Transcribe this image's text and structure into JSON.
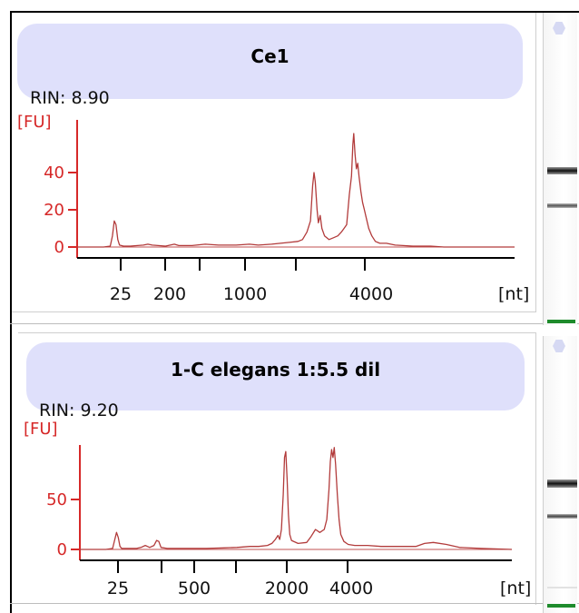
{
  "chart_data": [
    {
      "type": "line",
      "title": "Ce1",
      "rin": "RIN: 8.90",
      "ylabel": "[FU]",
      "xlabel": "[nt]",
      "y_ticks": [
        0,
        20,
        40
      ],
      "x_tick_labels": [
        "25",
        "200",
        "1000",
        "4000"
      ],
      "ylim": [
        -8,
        70
      ],
      "x_unit": "migration time (s, unlabeled axis)",
      "series": [
        {
          "color": "#b23b3b",
          "points": [
            [
              16,
              0
            ],
            [
              22,
              0
            ],
            [
              23.5,
              0.5
            ],
            [
              24,
              6
            ],
            [
              24.4,
              14
            ],
            [
              24.8,
              12
            ],
            [
              25.2,
              4
            ],
            [
              25.6,
              1
            ],
            [
              26.5,
              0.5
            ],
            [
              28,
              0.5
            ],
            [
              31,
              1
            ],
            [
              32,
              1.5
            ],
            [
              33,
              1
            ],
            [
              36,
              0.5
            ],
            [
              38,
              1.5
            ],
            [
              39,
              0.8
            ],
            [
              42,
              0.8
            ],
            [
              45,
              1.5
            ],
            [
              48,
              1
            ],
            [
              52,
              1
            ],
            [
              55,
              1.5
            ],
            [
              57,
              1
            ],
            [
              60,
              1.5
            ],
            [
              62,
              2
            ],
            [
              64,
              2.5
            ],
            [
              66,
              3
            ],
            [
              67,
              4
            ],
            [
              68,
              8
            ],
            [
              68.8,
              14
            ],
            [
              69.3,
              33
            ],
            [
              69.6,
              40
            ],
            [
              69.9,
              35
            ],
            [
              70.3,
              20
            ],
            [
              70.6,
              13
            ],
            [
              71,
              17
            ],
            [
              71.4,
              10
            ],
            [
              72,
              6
            ],
            [
              73,
              4
            ],
            [
              74,
              5
            ],
            [
              75,
              6
            ],
            [
              75.8,
              8
            ],
            [
              76.4,
              10
            ],
            [
              77,
              12
            ],
            [
              77.6,
              28
            ],
            [
              78.1,
              38
            ],
            [
              78.4,
              55
            ],
            [
              78.6,
              61
            ],
            [
              78.9,
              50
            ],
            [
              79.2,
              42
            ],
            [
              79.5,
              45
            ],
            [
              79.8,
              38
            ],
            [
              80.2,
              30
            ],
            [
              80.6,
              24
            ],
            [
              81,
              20
            ],
            [
              81.5,
              15
            ],
            [
              82,
              10
            ],
            [
              82.7,
              6
            ],
            [
              83.5,
              3
            ],
            [
              84.5,
              2
            ],
            [
              86,
              2
            ],
            [
              88,
              1
            ],
            [
              92,
              0.5
            ],
            [
              96,
              0.5
            ],
            [
              99,
              0
            ],
            [
              115,
              0
            ]
          ]
        }
      ]
    },
    {
      "type": "line",
      "title": "1-C elegans   1:5.5 dil",
      "rin": "RIN: 9.20",
      "ylabel": "[FU]",
      "xlabel": "[nt]",
      "y_ticks": [
        0,
        50
      ],
      "x_tick_labels": [
        "25",
        "500",
        "2000",
        "4000"
      ],
      "ylim": [
        -12,
        110
      ],
      "x_unit": "migration time (s, unlabeled axis)",
      "series": [
        {
          "color": "#b23b3b",
          "points": [
            [
              16,
              0
            ],
            [
              22,
              0
            ],
            [
              23.5,
              1
            ],
            [
              24,
              10
            ],
            [
              24.4,
              17
            ],
            [
              24.8,
              12
            ],
            [
              25.2,
              3
            ],
            [
              25.6,
              1
            ],
            [
              27,
              1
            ],
            [
              29,
              1
            ],
            [
              30,
              2
            ],
            [
              31,
              4
            ],
            [
              31.5,
              3
            ],
            [
              32,
              2
            ],
            [
              33,
              4
            ],
            [
              33.6,
              9
            ],
            [
              34.1,
              8
            ],
            [
              34.6,
              2
            ],
            [
              36,
              1
            ],
            [
              40,
              1
            ],
            [
              45,
              1
            ],
            [
              49,
              1.5
            ],
            [
              52,
              2
            ],
            [
              55,
              3
            ],
            [
              57,
              3
            ],
            [
              59,
              4
            ],
            [
              60,
              6
            ],
            [
              60.8,
              10
            ],
            [
              61.4,
              14
            ],
            [
              61.8,
              10
            ],
            [
              62.2,
              20
            ],
            [
              62.6,
              55
            ],
            [
              62.9,
              92
            ],
            [
              63.2,
              98
            ],
            [
              63.5,
              70
            ],
            [
              63.8,
              35
            ],
            [
              64.1,
              15
            ],
            [
              64.5,
              9
            ],
            [
              66,
              6
            ],
            [
              68,
              7
            ],
            [
              69,
              13
            ],
            [
              70,
              20
            ],
            [
              71,
              17
            ],
            [
              72,
              20
            ],
            [
              72.6,
              30
            ],
            [
              73.1,
              60
            ],
            [
              73.4,
              88
            ],
            [
              73.7,
              100
            ],
            [
              74,
              92
            ],
            [
              74.3,
              102
            ],
            [
              74.6,
              85
            ],
            [
              75,
              55
            ],
            [
              75.4,
              30
            ],
            [
              75.8,
              15
            ],
            [
              76.5,
              8
            ],
            [
              77.5,
              5
            ],
            [
              79,
              4
            ],
            [
              82,
              4
            ],
            [
              85,
              3
            ],
            [
              88,
              3
            ],
            [
              93,
              3
            ],
            [
              95,
              6
            ],
            [
              97,
              7
            ],
            [
              100,
              5
            ],
            [
              103,
              2
            ],
            [
              108,
              1
            ],
            [
              115,
              0
            ]
          ]
        }
      ]
    }
  ]
}
